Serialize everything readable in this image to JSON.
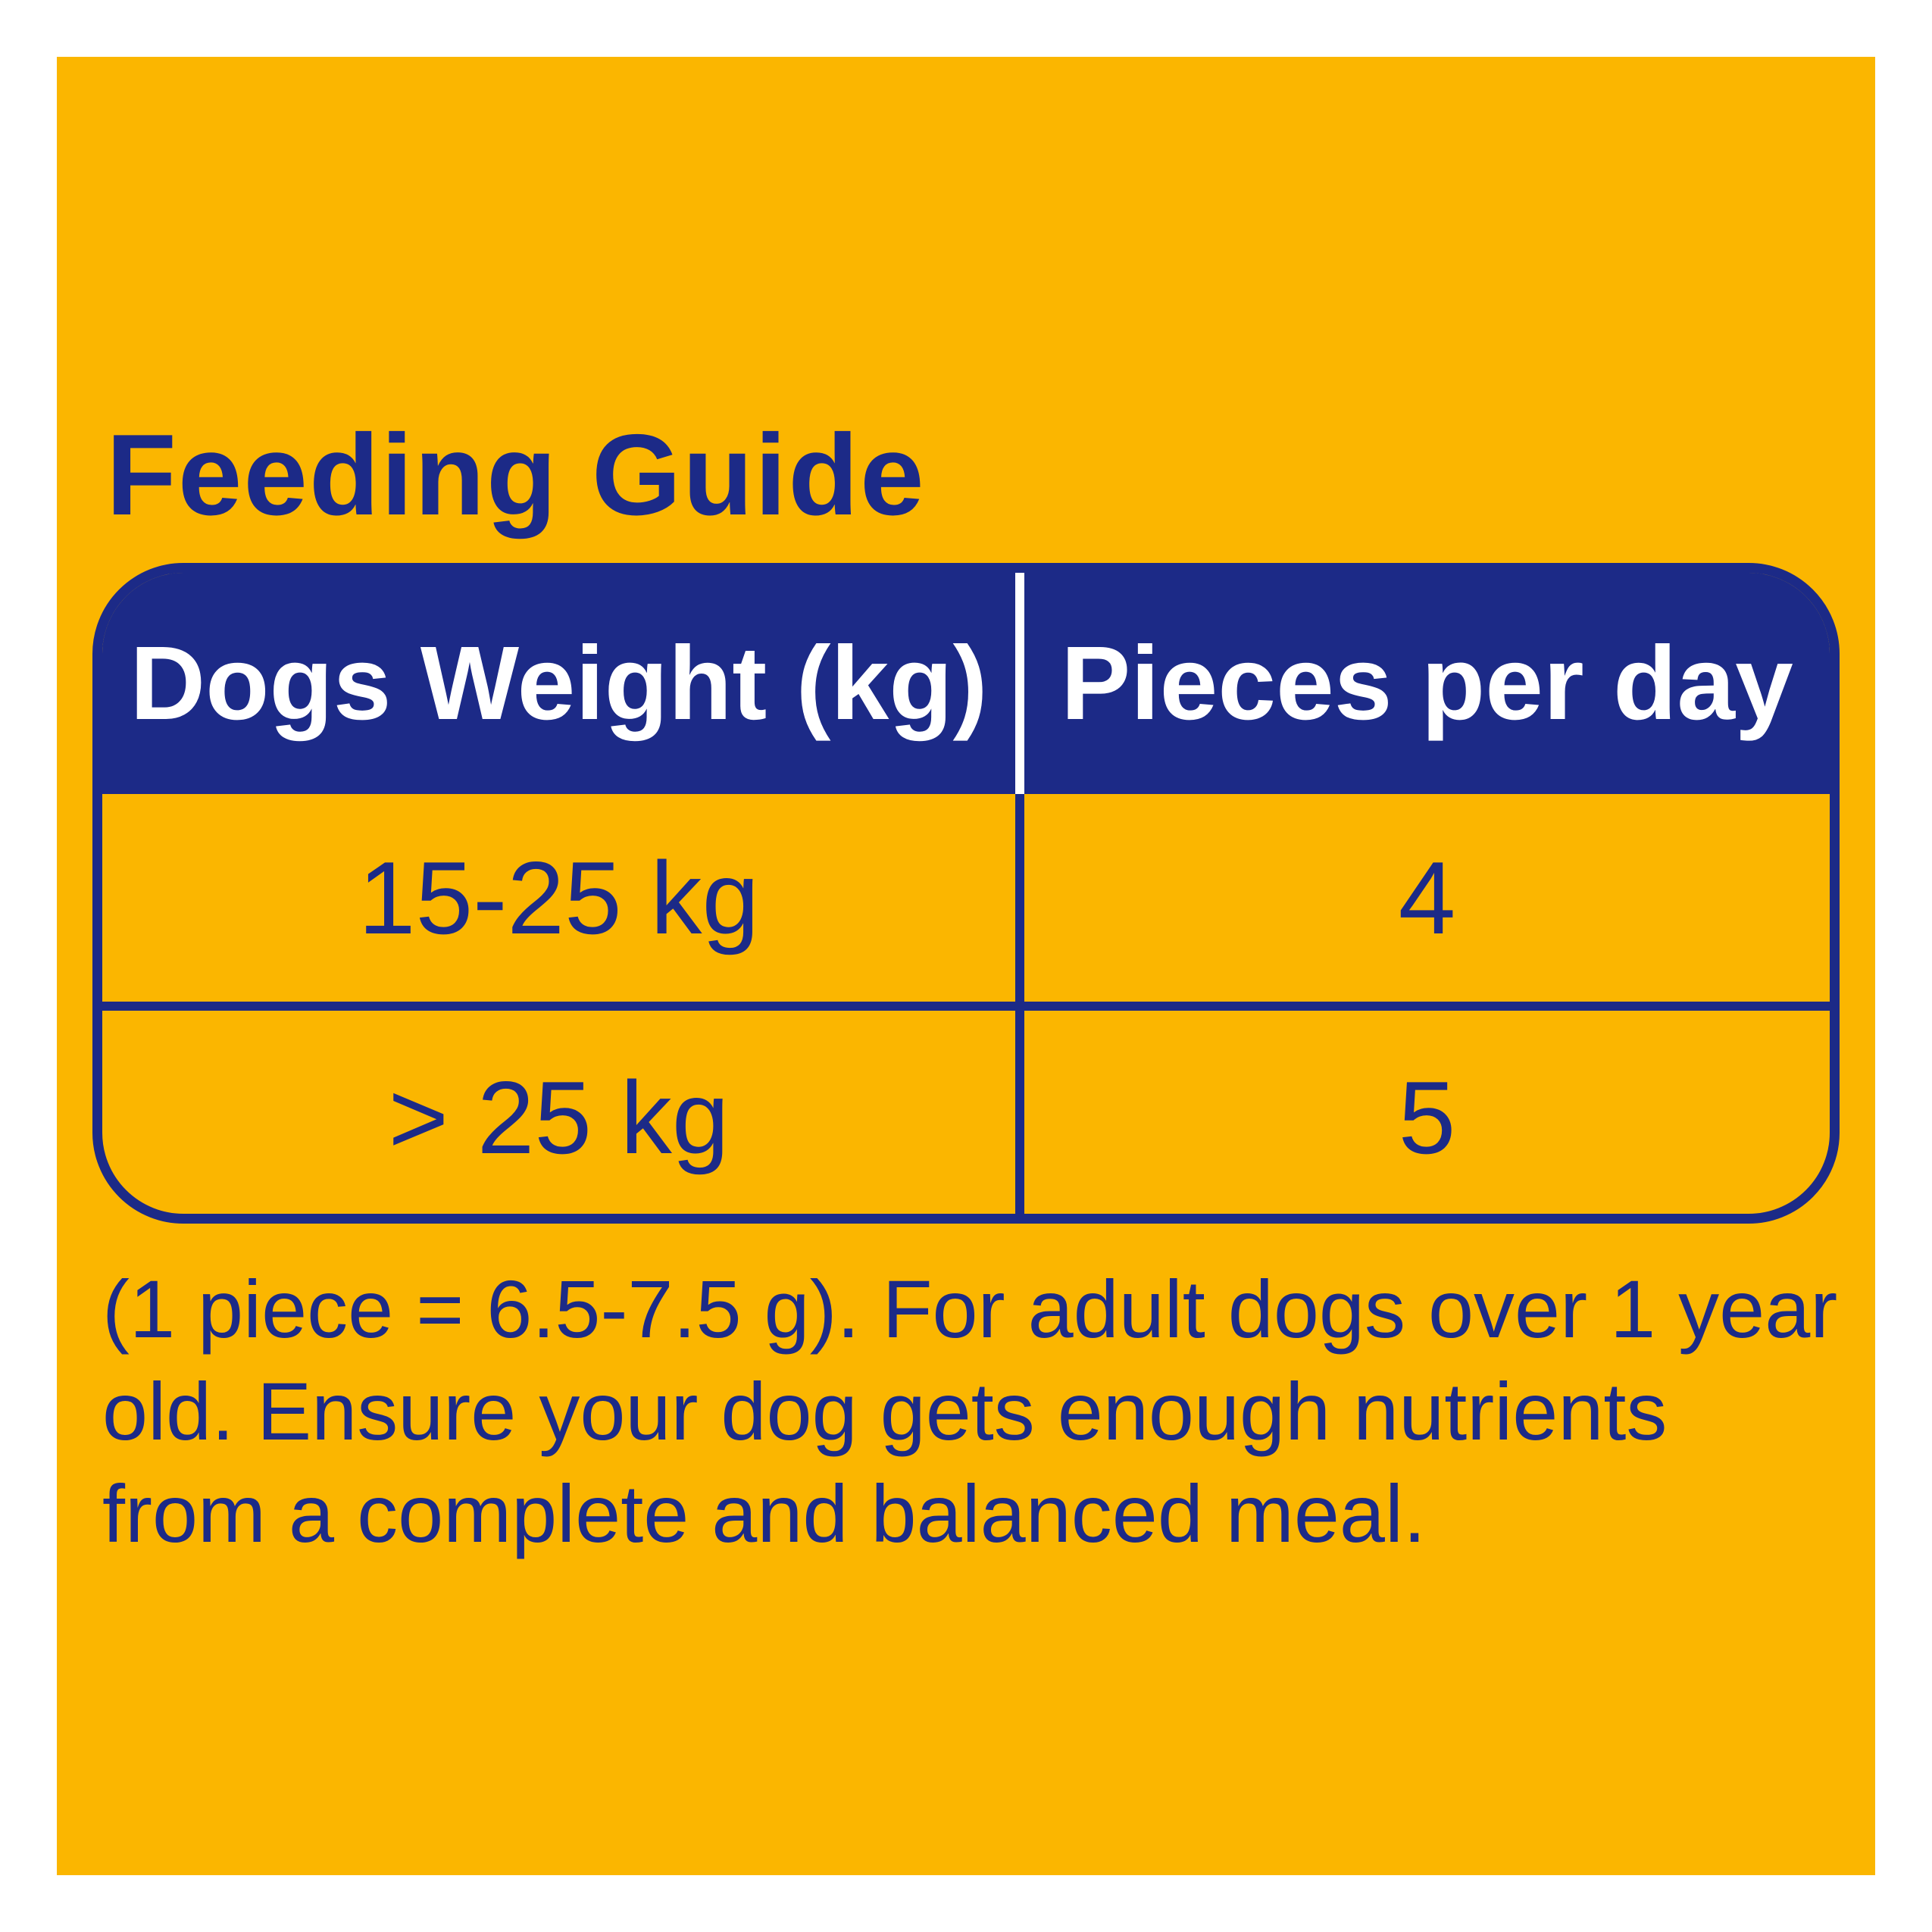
{
  "colors": {
    "background": "#FBB600",
    "navy": "#1C2A87",
    "header_text": "#FFFFFF"
  },
  "title": "Feeding Guide",
  "table": {
    "headers": [
      "Dogs Weight (kg)",
      "Pieces per day"
    ],
    "rows": [
      [
        "15-25 kg",
        "4"
      ],
      [
        "> 25 kg",
        "5"
      ]
    ]
  },
  "note": {
    "lines": [
      "(1 piece = 6.5-7.5 g).  For adult dogs over 1 year",
      "old.  Ensure your dog gets enough nutrients",
      "from a complete and balanced meal."
    ]
  }
}
